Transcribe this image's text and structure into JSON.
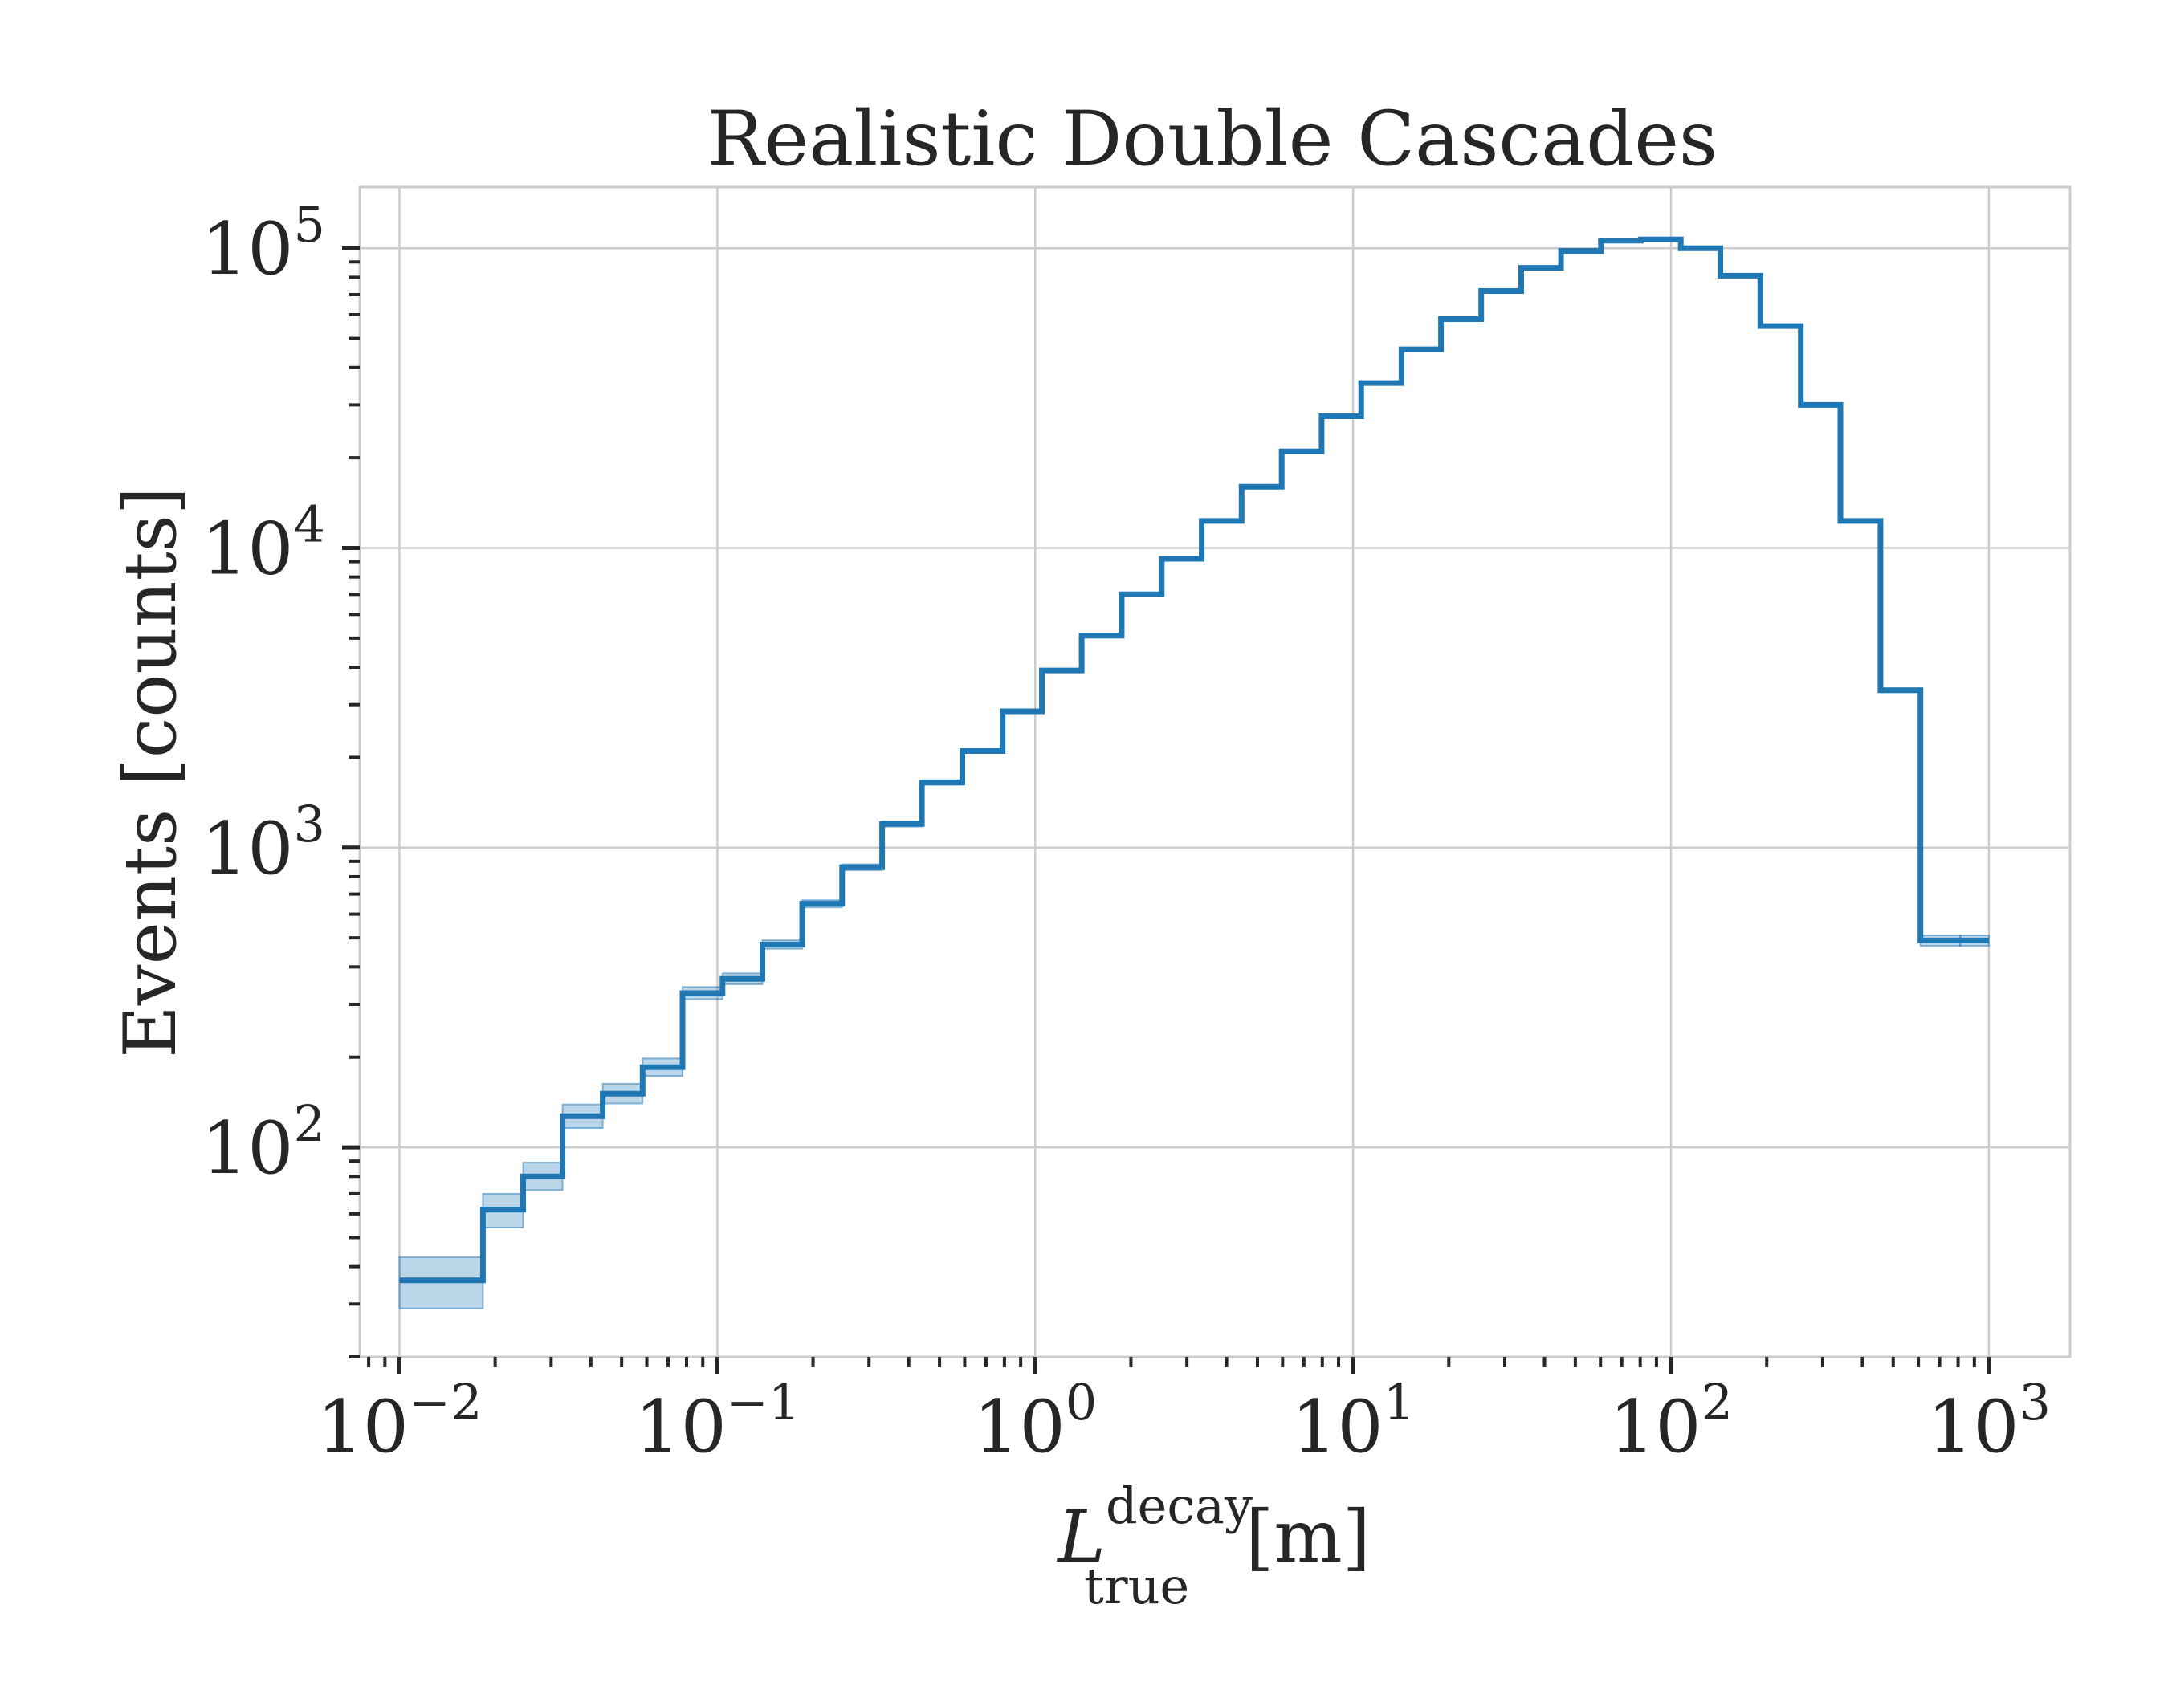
{
  "chart_data": {
    "type": "histogram-step",
    "title": "Realistic Double Cascades",
    "xlabel": {
      "main": "L",
      "sup": "decay",
      "sub": "true",
      "unit": "[m]"
    },
    "ylabel": "Events [counts]",
    "xscale": "log",
    "yscale": "log",
    "xlim": [
      0.0075,
      1800
    ],
    "ylim": [
      20,
      160000
    ],
    "grid": true,
    "x_ticks": [
      {
        "base": "10",
        "exp": "−2",
        "value": 0.01
      },
      {
        "base": "10",
        "exp": "−1",
        "value": 0.1
      },
      {
        "base": "10",
        "exp": "0",
        "value": 1
      },
      {
        "base": "10",
        "exp": "1",
        "value": 10
      },
      {
        "base": "10",
        "exp": "2",
        "value": 100
      },
      {
        "base": "10",
        "exp": "3",
        "value": 1000
      }
    ],
    "y_ticks": [
      {
        "base": "10",
        "exp": "2",
        "value": 100
      },
      {
        "base": "10",
        "exp": "3",
        "value": 1000
      },
      {
        "base": "10",
        "exp": "4",
        "value": 10000
      },
      {
        "base": "10",
        "exp": "5",
        "value": 100000
      }
    ],
    "series": [
      {
        "color": "#1f77b4",
        "band_color": "#1f77b4",
        "bin_edges": [
          0.01,
          0.0183,
          0.0245,
          0.0326,
          0.0436,
          0.0582,
          0.0777,
          0.1038,
          0.1386,
          0.185,
          0.247,
          0.33,
          0.44,
          0.59,
          0.79,
          1.05,
          1.4,
          1.87,
          2.5,
          3.34,
          4.46,
          5.96,
          7.96,
          10.6,
          14.2,
          18.9,
          25.3,
          33.8,
          45.1,
          60.2,
          80.4,
          107.3,
          143,
          191,
          256,
          341,
          456,
          609,
          813,
          1000
        ],
        "values": [
          36,
          62,
          80,
          127,
          151,
          185,
          327,
          365,
          475,
          650,
          860,
          1200,
          1650,
          2100,
          2850,
          3900,
          5100,
          7000,
          9200,
          12300,
          16000,
          21000,
          27500,
          35500,
          46000,
          58000,
          72000,
          86000,
          98000,
          106000,
          107000,
          100000,
          81000,
          55000,
          30000,
          12300,
          3350,
          490,
          490
        ],
        "errors_low": [
          29,
          54,
          72,
          116,
          140,
          173,
          312,
          350,
          460,
          632,
          840,
          1175,
          1620,
          2070,
          2810,
          3850,
          5050,
          6920,
          9100,
          12200,
          15850,
          20800,
          27300,
          35200,
          45700,
          57700,
          71600,
          85600,
          97500,
          105500,
          106500,
          99500,
          80600,
          54700,
          29800,
          12200,
          3300,
          470,
          470
        ],
        "errors_high": [
          43,
          70,
          89,
          139,
          163,
          198,
          343,
          381,
          491,
          668,
          880,
          1225,
          1680,
          2130,
          2890,
          3950,
          5150,
          7080,
          9300,
          12400,
          16150,
          21200,
          27700,
          35800,
          46300,
          58300,
          72400,
          86400,
          98500,
          106500,
          107500,
          100500,
          81400,
          55300,
          30200,
          12400,
          3400,
          510,
          510
        ]
      }
    ]
  }
}
